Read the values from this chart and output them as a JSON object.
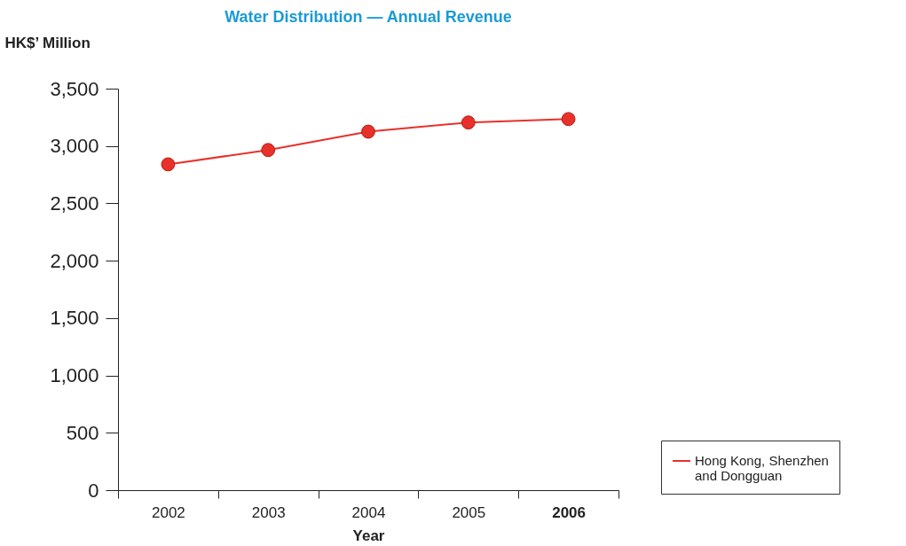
{
  "chart_data": {
    "type": "line",
    "title": "Water Distribution — Annual Revenue",
    "ylabel": "HK$’ Million",
    "xlabel": "Year",
    "categories": [
      "2002",
      "2003",
      "2004",
      "2005",
      "2006"
    ],
    "series": [
      {
        "name": "Hong Kong, Shenzhen and Dongguan",
        "color": "#e8312a",
        "values": [
          2840,
          2965,
          3125,
          3205,
          3235
        ]
      }
    ],
    "ylim": [
      0,
      3500
    ],
    "yticks": [
      0,
      500,
      {
        "value": 1000,
        "label": "1,000"
      },
      {
        "value": 1500,
        "label": "1,500"
      },
      {
        "value": 2000,
        "label": "2,000"
      },
      {
        "value": 2500,
        "label": "2,500"
      },
      {
        "value": 3000,
        "label": "3,000"
      },
      {
        "value": 3500,
        "label": "3,500"
      }
    ],
    "grid": false,
    "legend": "bottom right",
    "marker": "circle",
    "line_style": "solid"
  }
}
